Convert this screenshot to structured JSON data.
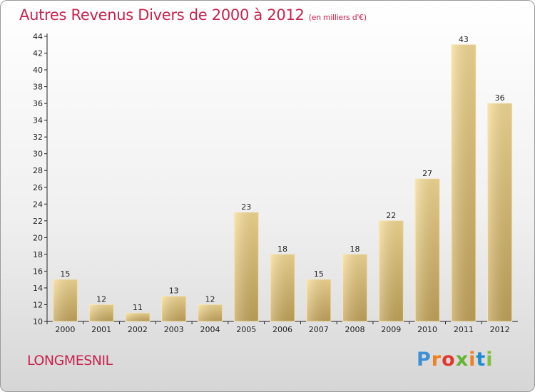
{
  "title": "Autres Revenus Divers de 2000 à 2012",
  "subtitle": "(en milliers d'€)",
  "place": "LONGMESNIL",
  "brand": {
    "letters": [
      "P",
      "r",
      "o",
      "x",
      "i",
      "t",
      "i"
    ],
    "colors": [
      "#3d8fd6",
      "#f0821e",
      "#e2392f",
      "#65b331",
      "#f0821e",
      "#1f8bd0",
      "#7dc23f"
    ]
  },
  "chart_data": {
    "type": "bar",
    "title": "Autres Revenus Divers de 2000 à 2012",
    "subtitle": "(en milliers d'€)",
    "xlabel": "",
    "ylabel": "",
    "categories": [
      "2000",
      "2001",
      "2002",
      "2003",
      "2004",
      "2005",
      "2006",
      "2007",
      "2008",
      "2009",
      "2010",
      "2011",
      "2012"
    ],
    "values": [
      15,
      12,
      11,
      13,
      12,
      23,
      18,
      15,
      18,
      22,
      27,
      43,
      36
    ],
    "ylim": [
      10,
      44
    ],
    "yticks": [
      10,
      12,
      14,
      16,
      18,
      20,
      22,
      24,
      26,
      28,
      30,
      32,
      34,
      36,
      38,
      40,
      42,
      44
    ],
    "grid": false,
    "bar_color": "#e6c77a"
  }
}
